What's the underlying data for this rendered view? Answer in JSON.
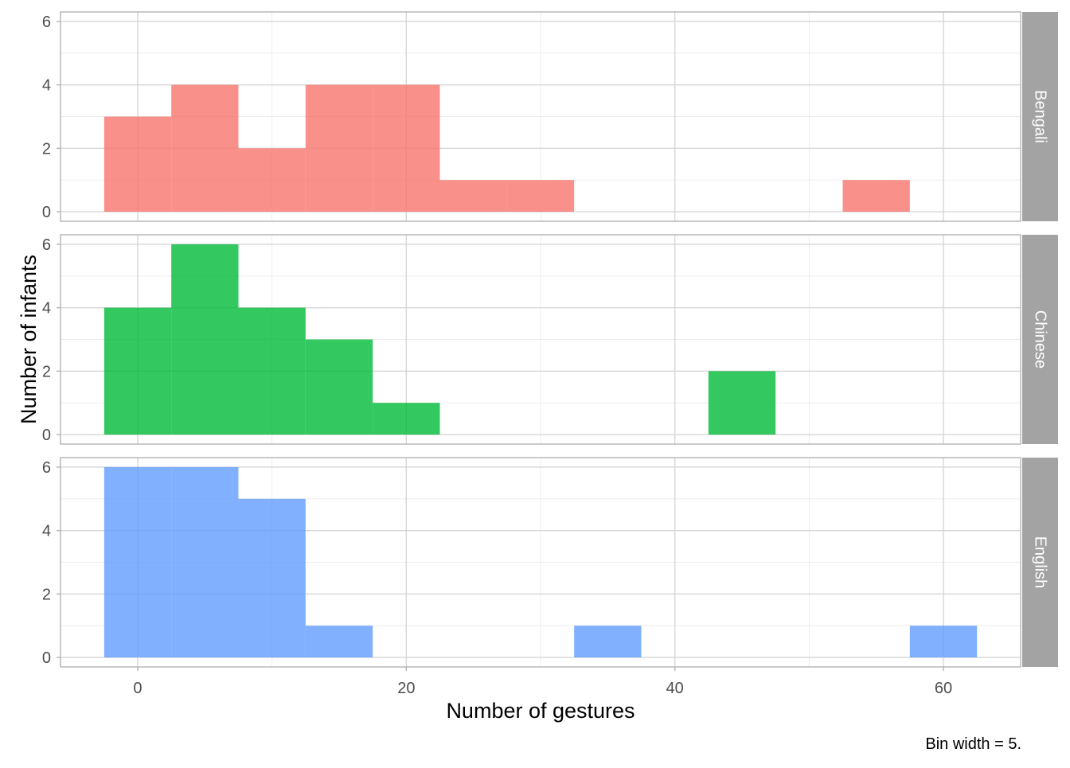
{
  "chart_data": {
    "type": "histogram",
    "xlabel": "Number of gestures",
    "ylabel": "Number of infants",
    "caption": "Bin width = 5.",
    "xlim": [
      -5.75,
      65.75
    ],
    "ylim": [
      -0.3,
      6.3
    ],
    "x_ticks": [
      0,
      20,
      40,
      60
    ],
    "y_ticks": [
      0,
      2,
      4,
      6
    ],
    "bin_width": 5,
    "grid": true,
    "facet_layout": "rows",
    "strip_position": "right",
    "series": [
      {
        "name": "Bengali",
        "color": "#F8766D",
        "bins": [
          {
            "x0": -2.5,
            "x1": 2.5,
            "count": 3
          },
          {
            "x0": 2.5,
            "x1": 7.5,
            "count": 4
          },
          {
            "x0": 7.5,
            "x1": 12.5,
            "count": 2
          },
          {
            "x0": 12.5,
            "x1": 17.5,
            "count": 4
          },
          {
            "x0": 17.5,
            "x1": 22.5,
            "count": 4
          },
          {
            "x0": 22.5,
            "x1": 27.5,
            "count": 1
          },
          {
            "x0": 27.5,
            "x1": 32.5,
            "count": 1
          },
          {
            "x0": 52.5,
            "x1": 57.5,
            "count": 1
          }
        ]
      },
      {
        "name": "Chinese",
        "color": "#00BA38",
        "bins": [
          {
            "x0": -2.5,
            "x1": 2.5,
            "count": 4
          },
          {
            "x0": 2.5,
            "x1": 7.5,
            "count": 6
          },
          {
            "x0": 7.5,
            "x1": 12.5,
            "count": 4
          },
          {
            "x0": 12.5,
            "x1": 17.5,
            "count": 3
          },
          {
            "x0": 17.5,
            "x1": 22.5,
            "count": 1
          },
          {
            "x0": 42.5,
            "x1": 47.5,
            "count": 2
          }
        ]
      },
      {
        "name": "English",
        "color": "#619CFF",
        "bins": [
          {
            "x0": -2.5,
            "x1": 2.5,
            "count": 6
          },
          {
            "x0": 2.5,
            "x1": 7.5,
            "count": 6
          },
          {
            "x0": 7.5,
            "x1": 12.5,
            "count": 5
          },
          {
            "x0": 12.5,
            "x1": 17.5,
            "count": 1
          },
          {
            "x0": 32.5,
            "x1": 37.5,
            "count": 1
          },
          {
            "x0": 57.5,
            "x1": 62.5,
            "count": 1
          }
        ]
      }
    ]
  }
}
